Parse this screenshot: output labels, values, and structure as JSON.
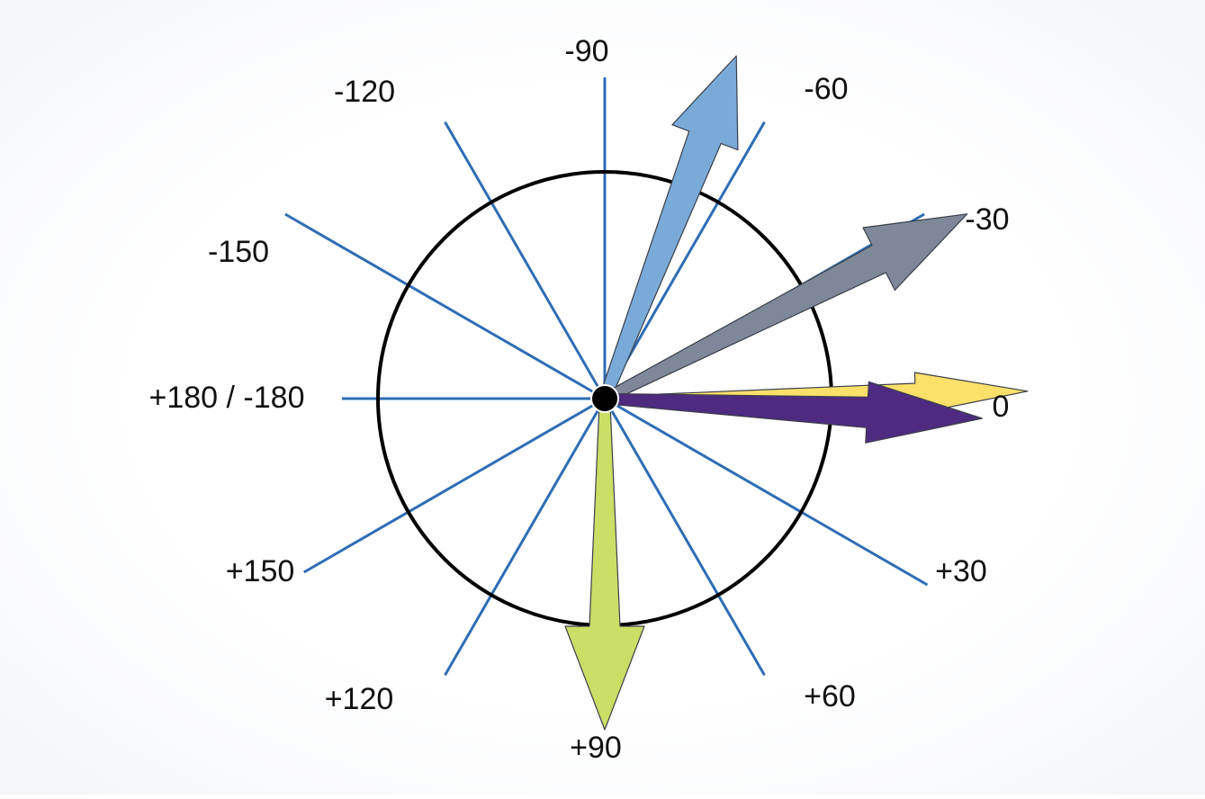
{
  "colors": {
    "background": "#ffffff",
    "circle": "#000000",
    "spoke": "#2e6db4",
    "center_dot": "#000000"
  },
  "angle_labels": [
    {
      "angle": -90,
      "text": "-90"
    },
    {
      "angle": -60,
      "text": "-60"
    },
    {
      "angle": -30,
      "text": "-30"
    },
    {
      "angle": 0,
      "text": "0"
    },
    {
      "angle": 30,
      "text": "+30"
    },
    {
      "angle": 60,
      "text": "+60"
    },
    {
      "angle": 90,
      "text": "+90"
    },
    {
      "angle": 120,
      "text": "+120"
    },
    {
      "angle": 150,
      "text": "+150"
    },
    {
      "angle": 180,
      "text": "+180 / -180"
    },
    {
      "angle": -150,
      "text": "-150"
    },
    {
      "angle": -120,
      "text": "-120"
    }
  ],
  "arrows": [
    {
      "id": "blue-arrow",
      "angle": -69,
      "color": "#7aaad8"
    },
    {
      "id": "gray-arrow",
      "angle": -27,
      "color": "#7e8898"
    },
    {
      "id": "yellow-arrow",
      "angle": -1,
      "color": "#fbe06a"
    },
    {
      "id": "purple-arrow",
      "angle": 3,
      "color": "#4e2a80"
    },
    {
      "id": "green-arrow",
      "angle": 90,
      "color": "#cbde66"
    }
  ]
}
